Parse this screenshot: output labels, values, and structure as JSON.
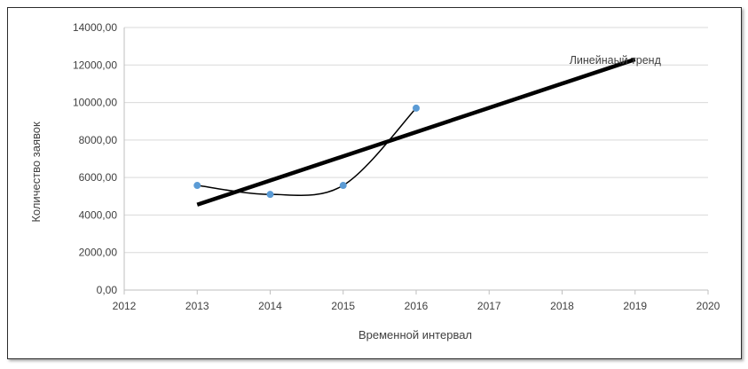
{
  "chart_data": {
    "type": "scatter",
    "title": "",
    "xlabel": "Временной интервал",
    "ylabel": "Количество заявок",
    "xlim": [
      2012,
      2020
    ],
    "ylim": [
      0,
      14000
    ],
    "x_ticks": [
      2012,
      2013,
      2014,
      2015,
      2016,
      2017,
      2018,
      2019,
      2020
    ],
    "x_tick_labels": [
      "2012",
      "2013",
      "2014",
      "2015",
      "2016",
      "2017",
      "2018",
      "2019",
      "2020"
    ],
    "y_ticks": [
      0,
      2000,
      4000,
      6000,
      8000,
      10000,
      12000,
      14000
    ],
    "y_tick_labels": [
      "0,00",
      "2000,00",
      "4000,00",
      "6000,00",
      "8000,00",
      "10000,00",
      "12000,00",
      "14000,00"
    ],
    "grid": {
      "horizontal": true,
      "vertical": false
    },
    "series": [
      {
        "type": "scatter-smooth",
        "x": [
          2013,
          2014,
          2015,
          2016
        ],
        "y": [
          5580,
          5100,
          5580,
          9700
        ],
        "color": "#5b9bd5",
        "line_color": "#000000"
      },
      {
        "type": "trendline",
        "x": [
          2013,
          2019
        ],
        "y": [
          4550,
          12300
        ],
        "color": "#000000"
      }
    ],
    "annotations": [
      {
        "text": "Линейнаый тренд",
        "x": 2018.1,
        "y": 12250
      }
    ]
  }
}
